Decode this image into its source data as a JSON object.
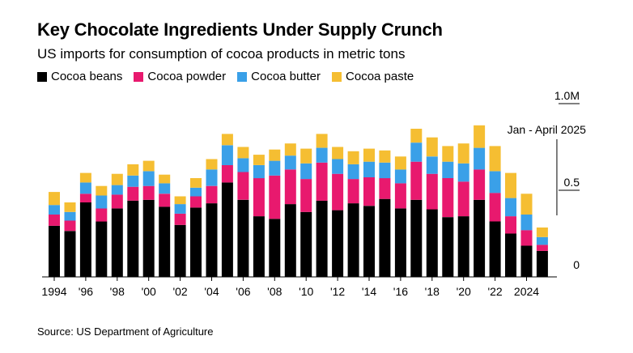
{
  "title": "Key Chocolate Ingredients Under Supply Crunch",
  "subtitle": "US imports for consumption of cocoa products in metric tons",
  "source": "Source: US Department of Agriculture",
  "colors": {
    "beans": "#000000",
    "powder": "#e8196e",
    "butter": "#3aa0e8",
    "paste": "#f5be32"
  },
  "chart_data": {
    "type": "bar",
    "stacked": true,
    "title": "Key Chocolate Ingredients Under Supply Crunch",
    "subtitle": "US imports for consumption of cocoa products in metric tons",
    "x": [
      1994,
      1995,
      1996,
      1997,
      1998,
      1999,
      2000,
      2001,
      2002,
      2003,
      2004,
      2005,
      2006,
      2007,
      2008,
      2009,
      2010,
      2011,
      2012,
      2013,
      2014,
      2015,
      2016,
      2017,
      2018,
      2019,
      2020,
      2021,
      2022,
      2023,
      2024,
      2025
    ],
    "x_tick_labels": [
      "1994",
      "'96",
      "'98",
      "'00",
      "'02",
      "'04",
      "'06",
      "'08",
      "'10",
      "'12",
      "'14",
      "'16",
      "'18",
      "'20",
      "'22",
      "2024"
    ],
    "y_tick_labels": [
      "0",
      "0.5",
      "1.0M"
    ],
    "ylim": [
      0,
      1000000
    ],
    "series": [
      {
        "name": "Cocoa beans",
        "color": "#000000",
        "values": [
          295000,
          265000,
          430000,
          320000,
          395000,
          440000,
          445000,
          405000,
          300000,
          400000,
          425000,
          545000,
          445000,
          350000,
          335000,
          420000,
          375000,
          440000,
          385000,
          425000,
          410000,
          450000,
          395000,
          445000,
          390000,
          345000,
          350000,
          445000,
          320000,
          250000,
          180000,
          150000
        ]
      },
      {
        "name": "Cocoa powder",
        "color": "#e8196e",
        "values": [
          65000,
          60000,
          50000,
          75000,
          80000,
          80000,
          80000,
          75000,
          65000,
          65000,
          100000,
          100000,
          160000,
          220000,
          250000,
          200000,
          190000,
          220000,
          210000,
          140000,
          165000,
          120000,
          145000,
          220000,
          205000,
          225000,
          200000,
          175000,
          165000,
          100000,
          90000,
          35000
        ]
      },
      {
        "name": "Cocoa butter",
        "color": "#3aa0e8",
        "values": [
          55000,
          50000,
          65000,
          75000,
          55000,
          65000,
          85000,
          60000,
          55000,
          50000,
          95000,
          115000,
          80000,
          75000,
          85000,
          80000,
          90000,
          85000,
          85000,
          85000,
          90000,
          90000,
          80000,
          110000,
          100000,
          95000,
          105000,
          125000,
          125000,
          105000,
          90000,
          45000
        ]
      },
      {
        "name": "Cocoa paste",
        "color": "#f5be32",
        "values": [
          75000,
          55000,
          55000,
          55000,
          65000,
          65000,
          60000,
          50000,
          45000,
          55000,
          60000,
          65000,
          65000,
          60000,
          65000,
          70000,
          85000,
          80000,
          70000,
          75000,
          75000,
          70000,
          75000,
          80000,
          110000,
          90000,
          115000,
          130000,
          145000,
          145000,
          120000,
          55000
        ]
      }
    ],
    "annotation": {
      "text": "Jan - April 2025",
      "x": 2025
    },
    "grid": false,
    "legend_position": "top-left"
  }
}
